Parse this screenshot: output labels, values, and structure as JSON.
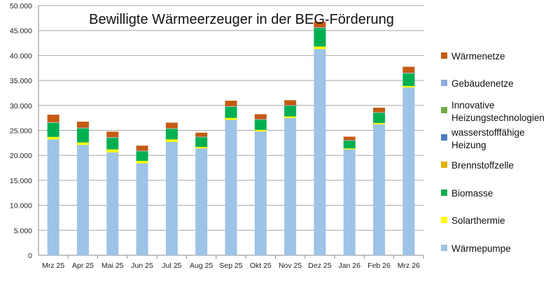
{
  "chart_data": {
    "type": "bar",
    "stacked": true,
    "title": "Bewilligte Wärmeerzeuger in der BEG-Förderung",
    "xlabel": "",
    "ylabel": "",
    "ylim": [
      0,
      50000
    ],
    "yticks": [
      "0",
      "5.000",
      "10.000",
      "15.000",
      "20.000",
      "25.000",
      "30.000",
      "35.000",
      "40.000",
      "45.000",
      "50.000"
    ],
    "grid": true,
    "legend_position": "right",
    "categories": [
      "Mrz 25",
      "Apr 25",
      "Mai 25",
      "Jun 25",
      "Jul 25",
      "Aug 25",
      "Sep 25",
      "Okt 25",
      "Nov 25",
      "Dez 25",
      "Jan 26",
      "Feb 26",
      "Mrz 26"
    ],
    "series": [
      {
        "name": "Wärmepumpe",
        "color": "#9dc3e6",
        "values": [
          23200,
          22100,
          20600,
          18400,
          22700,
          21400,
          27100,
          24800,
          27500,
          41300,
          21200,
          26200,
          33600
        ]
      },
      {
        "name": "Solarthermie",
        "color": "#ffff00",
        "values": [
          500,
          500,
          600,
          500,
          500,
          300,
          400,
          300,
          300,
          500,
          200,
          300,
          300
        ]
      },
      {
        "name": "Biomasse",
        "color": "#00b050",
        "values": [
          2800,
          2800,
          2300,
          1900,
          2100,
          1900,
          2200,
          2000,
          2100,
          3700,
          1500,
          2000,
          2500
        ]
      },
      {
        "name": "Brennstoffzelle",
        "color": "#e0b000",
        "values": [
          0,
          0,
          0,
          0,
          0,
          0,
          0,
          0,
          0,
          0,
          0,
          0,
          0
        ]
      },
      {
        "name": "wasserstofffähige Heizung",
        "color": "#4a7ebb",
        "values": [
          0,
          0,
          0,
          0,
          0,
          0,
          0,
          0,
          0,
          0,
          0,
          0,
          0
        ]
      },
      {
        "name": "Innovative Heizungstechnologien",
        "color": "#70ad47",
        "values": [
          50,
          50,
          50,
          50,
          50,
          50,
          50,
          50,
          50,
          50,
          50,
          50,
          50
        ]
      },
      {
        "name": "Gebäudenetze",
        "color": "#8faadc",
        "values": [
          100,
          100,
          100,
          100,
          100,
          100,
          100,
          100,
          100,
          100,
          100,
          100,
          100
        ]
      },
      {
        "name": "Wärmenetze",
        "color": "#c55a11",
        "values": [
          1500,
          1200,
          1100,
          1000,
          1100,
          800,
          1100,
          1000,
          1000,
          1100,
          700,
          900,
          1200
        ]
      }
    ]
  },
  "legend": [
    {
      "label": "Wärmenetze",
      "color": "#c55a11"
    },
    {
      "label": "Gebäudenetze",
      "color": "#8faadc"
    },
    {
      "label": "Innovative Heizungstechnologien",
      "color": "#70ad47"
    },
    {
      "label": "wasserstofffähige Heizung",
      "color": "#4a7ebb"
    },
    {
      "label": "Brennstoffzelle",
      "color": "#e0b000"
    },
    {
      "label": "Biomasse",
      "color": "#00b050"
    },
    {
      "label": "Solarthermie",
      "color": "#ffff00"
    },
    {
      "label": "Wärmepumpe",
      "color": "#9dc3e6"
    }
  ]
}
